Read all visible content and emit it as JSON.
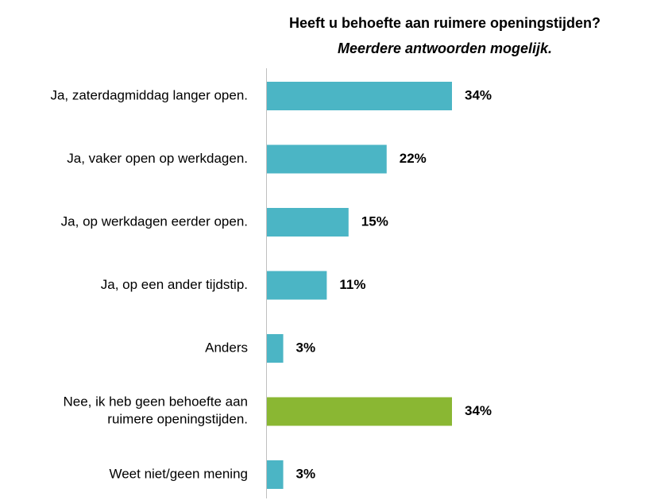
{
  "chart_data": {
    "type": "barh",
    "title": "Heeft u behoefte aan ruimere openingstijden?",
    "subtitle": "Meerdere antwoorden mogelijk.",
    "categories": [
      "Ja, zaterdagmiddag langer open.",
      "Ja, vaker open op werkdagen.",
      "Ja, op werkdagen eerder open.",
      "Ja, op een ander tijdstip.",
      "Anders",
      "Nee, ik heb geen behoefte aan ruimere openingstijden.",
      "Weet niet/geen mening"
    ],
    "values": [
      34,
      22,
      15,
      11,
      3,
      34,
      3
    ],
    "value_labels": [
      "34%",
      "22%",
      "15%",
      "11%",
      "3%",
      "34%",
      "3%"
    ],
    "colors": [
      "#4bb5c5",
      "#4bb5c5",
      "#4bb5c5",
      "#4bb5c5",
      "#4bb5c5",
      "#8ab733",
      "#4bb5c5"
    ]
  }
}
